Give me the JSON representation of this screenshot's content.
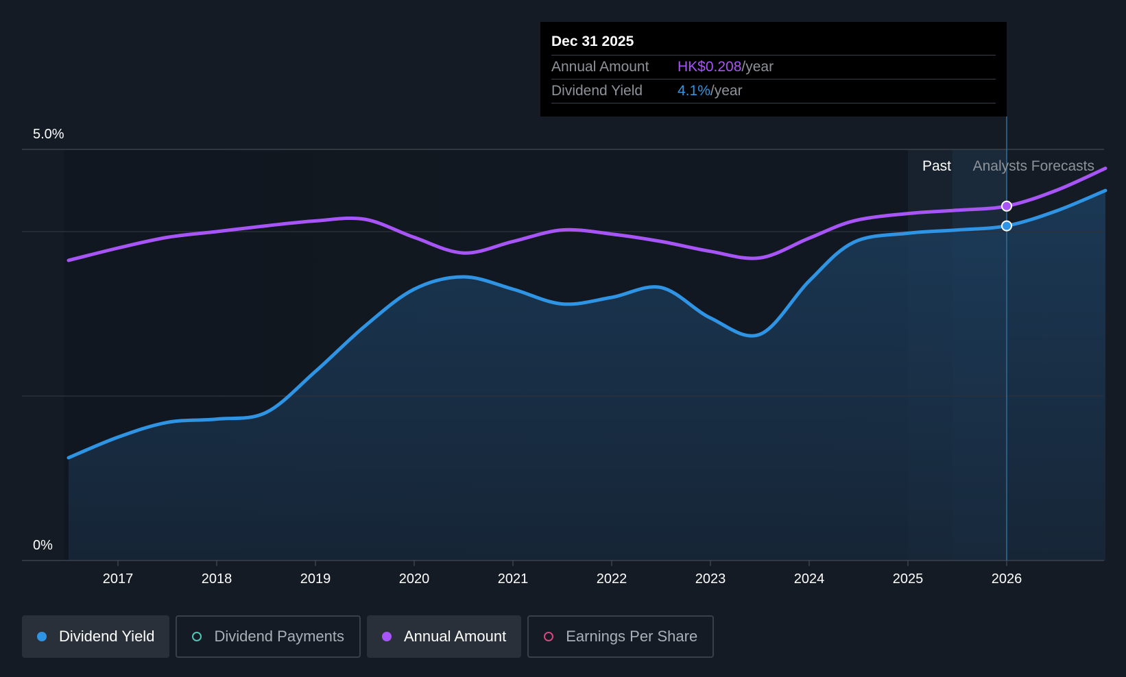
{
  "tooltip": {
    "date": "Dec 31 2025",
    "rows": [
      {
        "label": "Annual Amount",
        "value": "HK$0.208",
        "unit": "/year"
      },
      {
        "label": "Dividend Yield",
        "value": "4.1%",
        "unit": "/year"
      }
    ]
  },
  "legend": [
    {
      "label": "Dividend Yield",
      "color": "#2f94e3",
      "active": true,
      "filled": true
    },
    {
      "label": "Dividend Payments",
      "color": "#4fc6b8",
      "active": false,
      "filled": false
    },
    {
      "label": "Annual Amount",
      "color": "#a855f7",
      "active": true,
      "filled": true
    },
    {
      "label": "Earnings Per Share",
      "color": "#d9477f",
      "active": false,
      "filled": false
    }
  ],
  "chart_data": {
    "type": "line",
    "y_tick_labels": [
      "5.0%",
      "0%"
    ],
    "ylim": [
      0,
      5.0
    ],
    "xlim": [
      2016.05,
      2027.0
    ],
    "x_ticks": [
      "2017",
      "2018",
      "2019",
      "2020",
      "2021",
      "2022",
      "2023",
      "2024",
      "2025",
      "2026"
    ],
    "region_labels": {
      "past": "Past",
      "forecast": "Analysts Forecasts"
    },
    "highlight_date": 2026.0,
    "series": [
      {
        "name": "Dividend Yield",
        "color": "#2f94e3",
        "area": true,
        "points": [
          [
            2016.5,
            1.25
          ],
          [
            2017.0,
            1.5
          ],
          [
            2017.5,
            1.68
          ],
          [
            2018.0,
            1.72
          ],
          [
            2018.5,
            1.8
          ],
          [
            2019.0,
            2.3
          ],
          [
            2019.5,
            2.85
          ],
          [
            2020.0,
            3.3
          ],
          [
            2020.5,
            3.45
          ],
          [
            2021.0,
            3.3
          ],
          [
            2021.5,
            3.12
          ],
          [
            2022.0,
            3.2
          ],
          [
            2022.5,
            3.32
          ],
          [
            2023.0,
            2.95
          ],
          [
            2023.5,
            2.75
          ],
          [
            2024.0,
            3.4
          ],
          [
            2024.45,
            3.87
          ],
          [
            2025.0,
            3.98
          ],
          [
            2025.5,
            4.02
          ],
          [
            2026.0,
            4.07
          ],
          [
            2026.5,
            4.25
          ],
          [
            2027.0,
            4.5
          ]
        ]
      },
      {
        "name": "Annual Amount",
        "color": "#a855f7",
        "area": false,
        "points": [
          [
            2016.5,
            3.65
          ],
          [
            2017.0,
            3.8
          ],
          [
            2017.5,
            3.93
          ],
          [
            2018.0,
            4.0
          ],
          [
            2018.5,
            4.07
          ],
          [
            2019.0,
            4.13
          ],
          [
            2019.5,
            4.15
          ],
          [
            2020.0,
            3.93
          ],
          [
            2020.5,
            3.74
          ],
          [
            2021.0,
            3.88
          ],
          [
            2021.5,
            4.02
          ],
          [
            2022.0,
            3.97
          ],
          [
            2022.5,
            3.88
          ],
          [
            2023.0,
            3.76
          ],
          [
            2023.5,
            3.68
          ],
          [
            2024.0,
            3.92
          ],
          [
            2024.45,
            4.13
          ],
          [
            2025.0,
            4.22
          ],
          [
            2025.5,
            4.26
          ],
          [
            2026.0,
            4.31
          ],
          [
            2026.5,
            4.5
          ],
          [
            2027.0,
            4.77
          ]
        ]
      }
    ]
  }
}
